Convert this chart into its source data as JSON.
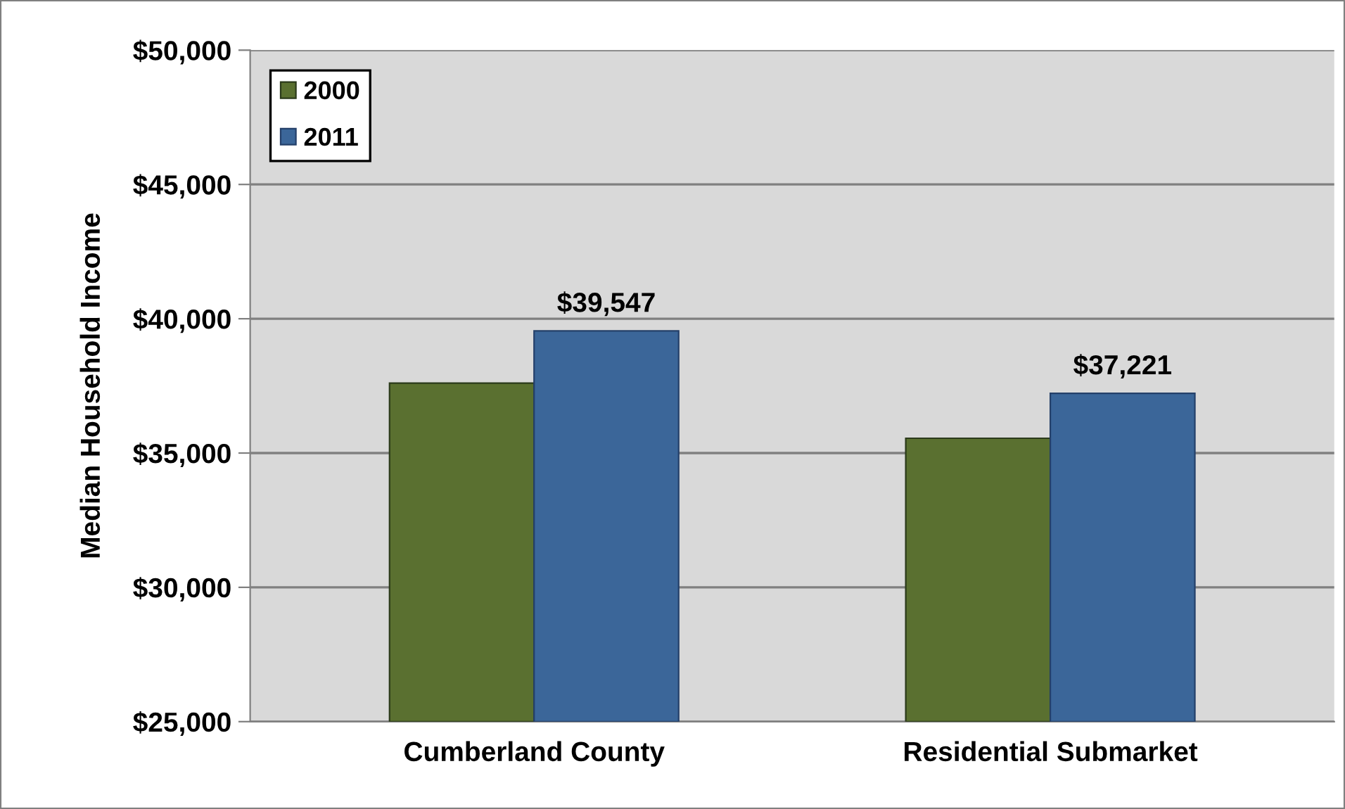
{
  "chart_data": {
    "type": "bar",
    "ylabel": "Median Household Income",
    "categories": [
      "Cumberland County",
      "Residential Submarket"
    ],
    "series": [
      {
        "name": "2000",
        "color": "#5a7030",
        "values": [
          37600,
          35550
        ]
      },
      {
        "name": "2011",
        "color": "#3b6699",
        "values": [
          39547,
          37221
        ],
        "value_labels": [
          "$39,547",
          "$37,221"
        ]
      }
    ],
    "ylim": [
      25000,
      50000
    ],
    "yticks": [
      {
        "value": 25000,
        "label": "$25,000"
      },
      {
        "value": 30000,
        "label": "$30,000"
      },
      {
        "value": 35000,
        "label": "$35,000"
      },
      {
        "value": 40000,
        "label": "$40,000"
      },
      {
        "value": 45000,
        "label": "$45,000"
      },
      {
        "value": 50000,
        "label": "$50,000"
      }
    ],
    "grid": "y",
    "legend": "top left"
  }
}
